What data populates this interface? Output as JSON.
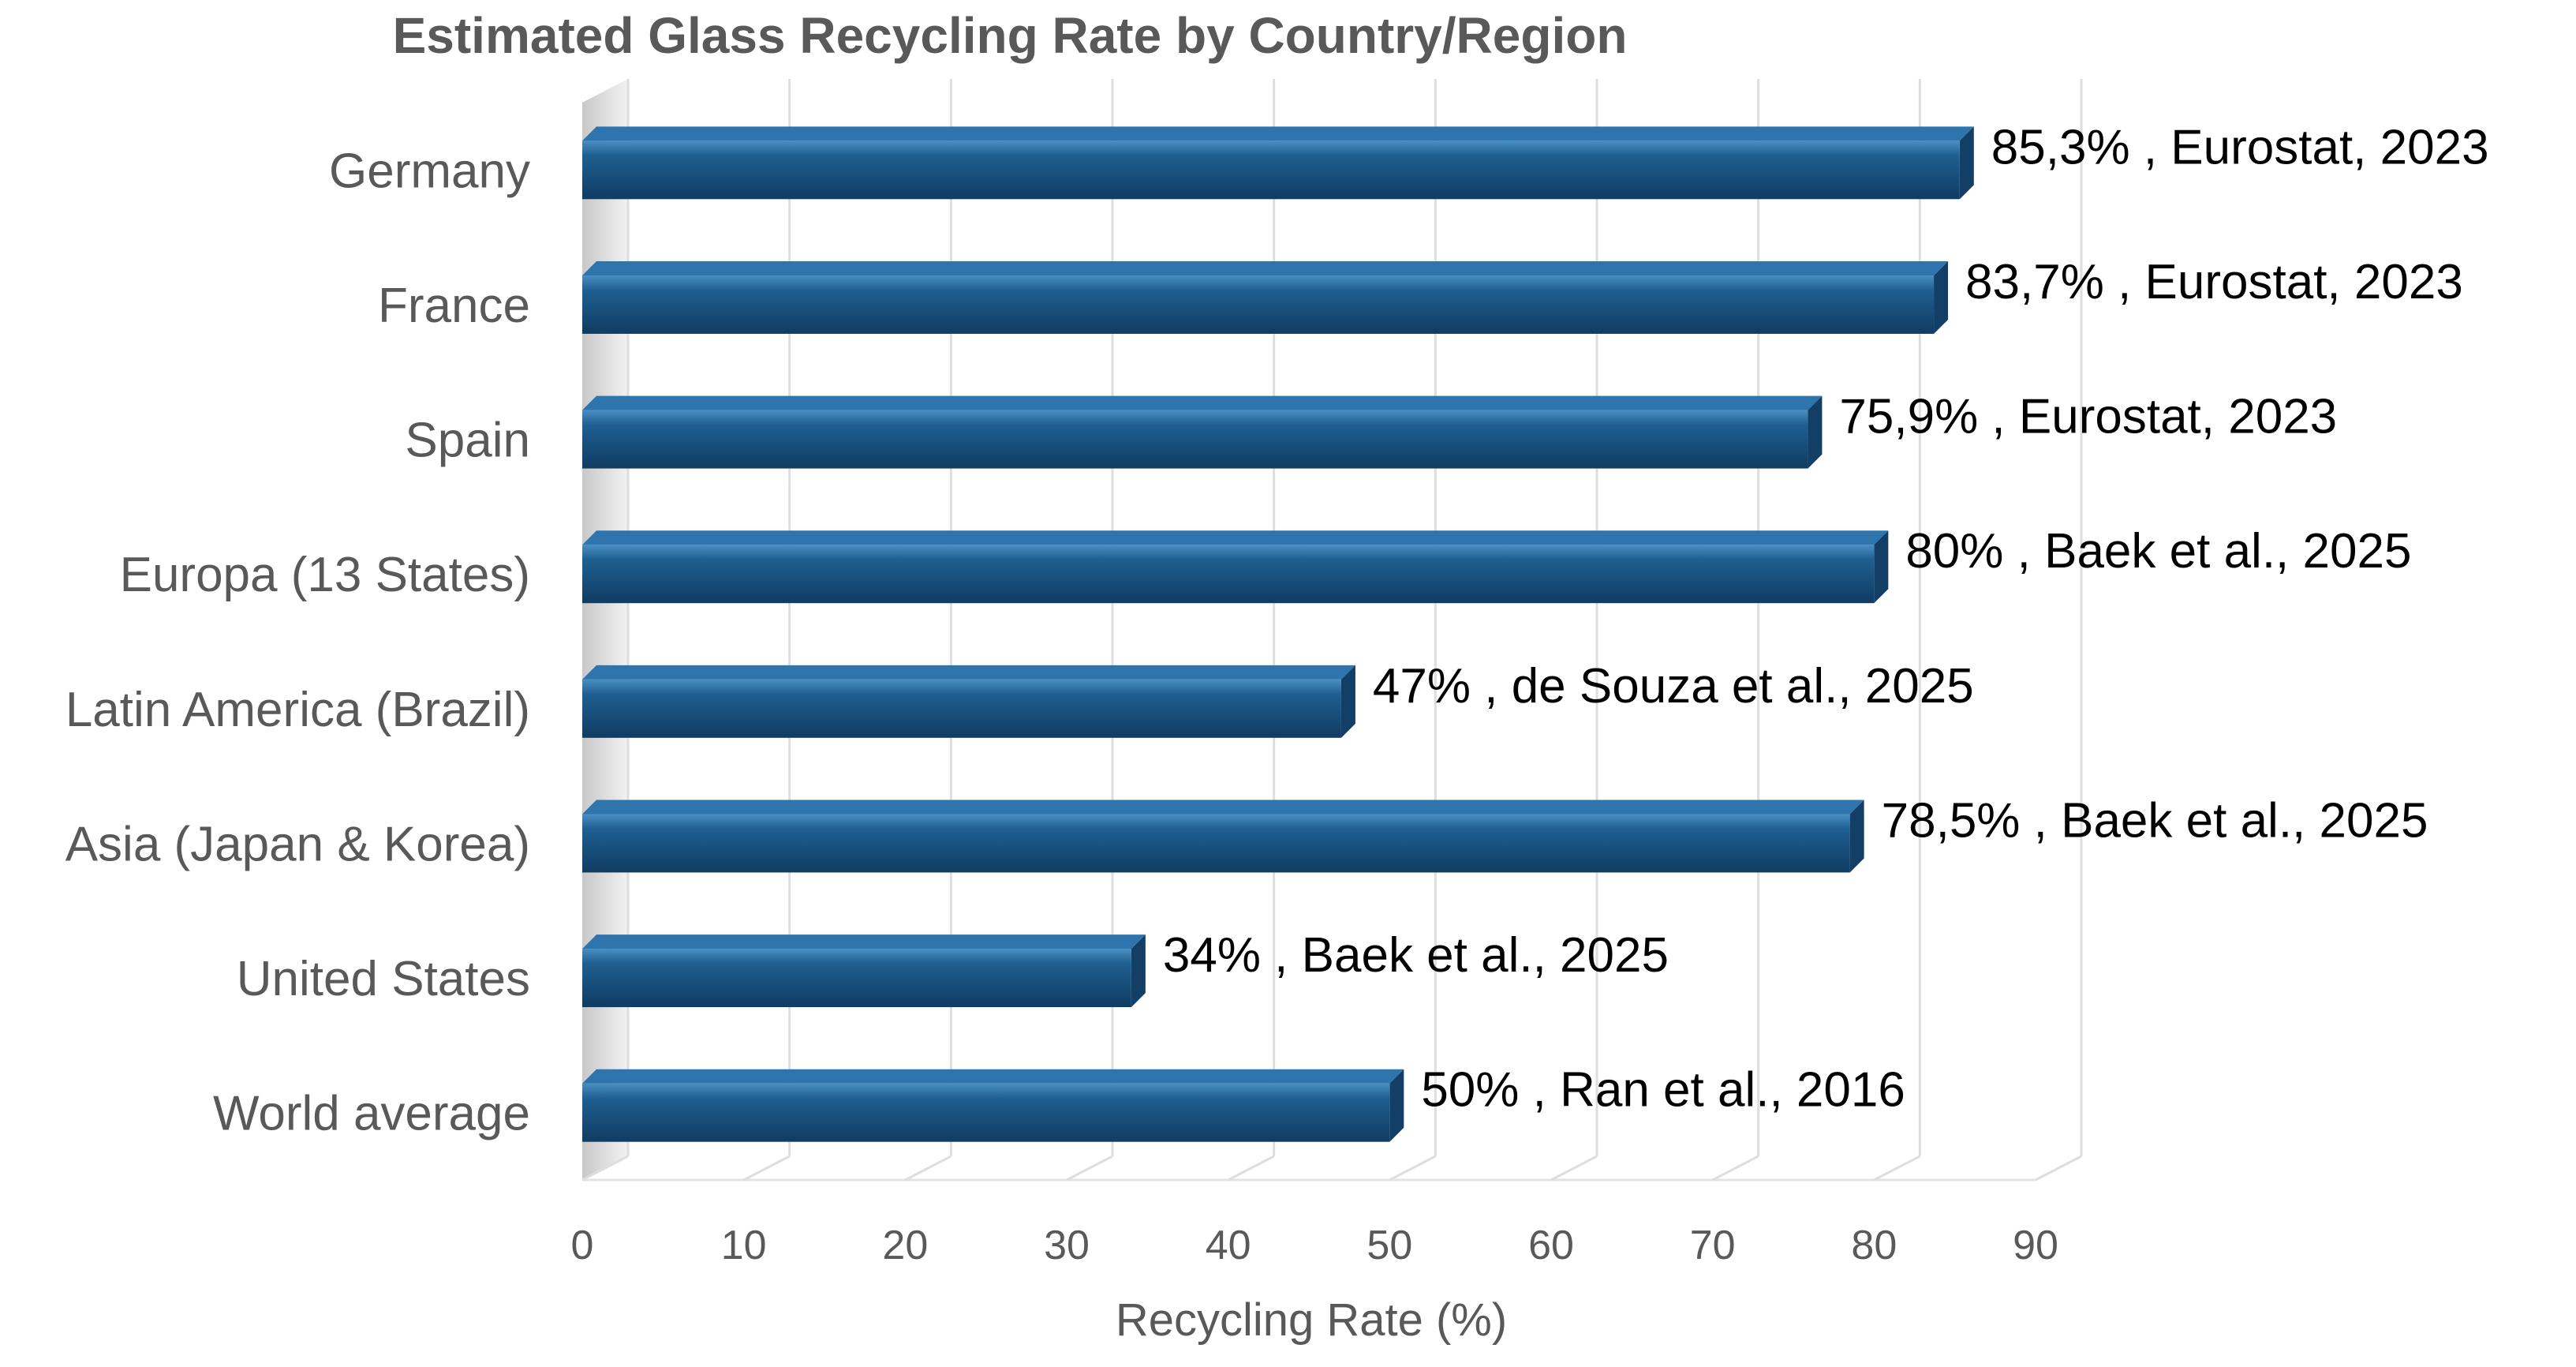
{
  "chart_data": {
    "type": "bar",
    "orientation": "horizontal",
    "title": "Estimated Glass Recycling Rate by Country/Region",
    "xlabel": "Recycling Rate (%)",
    "ylabel": "",
    "xlim": [
      0,
      90
    ],
    "x_ticks": [
      "0",
      "10",
      "20",
      "30",
      "40",
      "50",
      "60",
      "70",
      "80",
      "90"
    ],
    "grid": true,
    "bar_color": "#1F5C8B",
    "categories": [
      "Germany",
      "France",
      "Spain",
      "Europa (13 States)",
      "Latin America (Brazil)",
      "Asia (Japan & Korea)",
      "United States",
      "World average"
    ],
    "values": [
      85.3,
      83.7,
      75.9,
      80,
      47,
      78.5,
      34,
      50
    ],
    "data_labels": [
      "85,3% , Eurostat, 2023",
      "83,7% , Eurostat, 2023",
      "75,9% , Eurostat, 2023",
      "80% , Baek et al., 2025",
      "47% , de Souza et al., 2025",
      "78,5% , Baek et al., 2025",
      "34% , Baek et al., 2025",
      "50% , Ran et al., 2016"
    ]
  }
}
